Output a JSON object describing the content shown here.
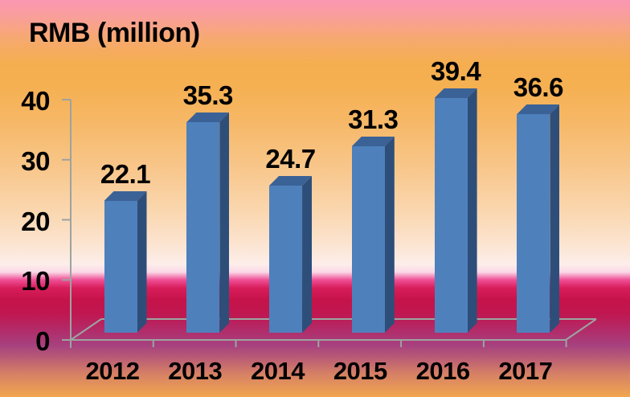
{
  "chart_data": {
    "type": "bar",
    "style": "3d-column",
    "title": "RMB (million)",
    "categories": [
      "2012",
      "2013",
      "2014",
      "2015",
      "2016",
      "2017"
    ],
    "values": [
      22.1,
      35.3,
      24.7,
      31.3,
      39.4,
      36.6
    ],
    "data_labels": [
      "22.1",
      "35.3",
      "24.7",
      "31.3",
      "39.4",
      "36.6"
    ],
    "y_ticks": [
      0,
      10,
      20,
      30,
      40
    ],
    "ylim": [
      0,
      40
    ],
    "xlabel": "",
    "ylabel": "",
    "legend": "none",
    "grid": "off",
    "colors": {
      "bar_front": "#4e80bc",
      "bar_top": "#3b6296",
      "bar_side": "#2e4e7a",
      "axis_line": "#9da3a0",
      "label_text": "#000000"
    }
  }
}
